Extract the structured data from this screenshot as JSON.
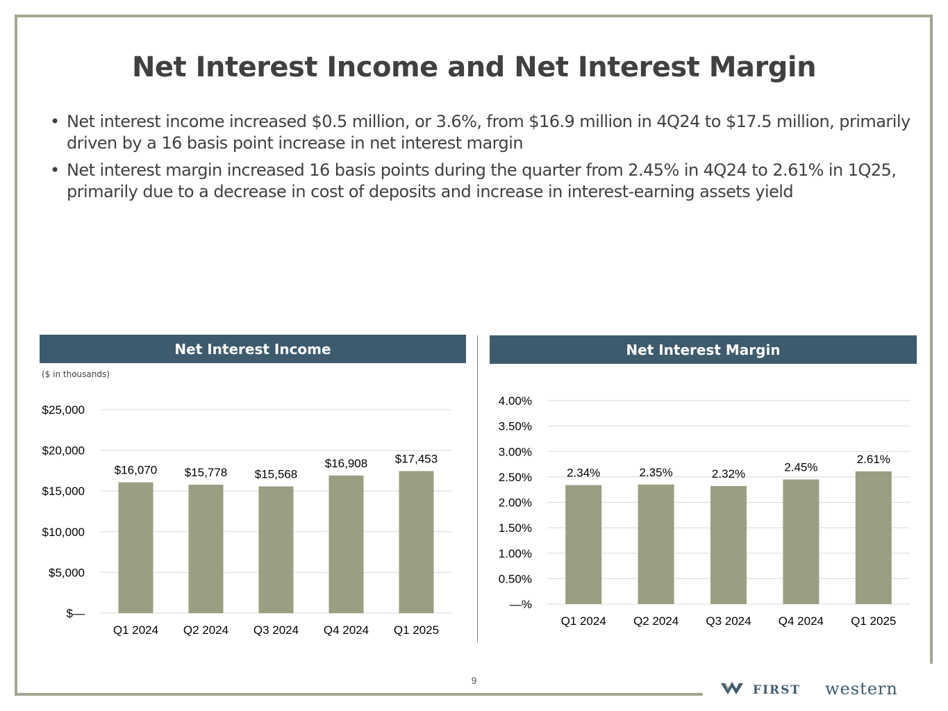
{
  "slide": {
    "title": "Net Interest Income and Net Interest Margin",
    "bullets": [
      "Net interest income increased $0.5 million, or 3.6%, from $16.9 million in 4Q24 to $17.5 million, primarily driven by  a 16 basis point increase in net interest margin",
      "Net interest margin increased 16 basis points during the quarter from 2.45% in 4Q24 to 2.61% in 1Q25, primarily due to a decrease in cost of deposits and increase in interest-earning assets yield"
    ],
    "page_number": "9"
  },
  "panels": {
    "nii_header": "Net Interest Income",
    "nim_header": "Net Interest Margin",
    "nii_note": "($ in thousands)"
  },
  "logo": {
    "word1": "FIRST",
    "word2": "western",
    "icon": "stylized-w-icon",
    "color": "#3e5b6e"
  },
  "chart_data": [
    {
      "type": "bar",
      "title": "Net Interest Income",
      "categories": [
        "Q1 2024",
        "Q2 2024",
        "Q3 2024",
        "Q4 2024",
        "Q1 2025"
      ],
      "values": [
        16070,
        15778,
        15568,
        16908,
        17453
      ],
      "data_labels": [
        "$16,070",
        "$15,778",
        "$15,568",
        "$16,908",
        "$17,453"
      ],
      "yticks": [
        0,
        5000,
        10000,
        15000,
        20000,
        25000
      ],
      "ytick_labels": [
        "$—",
        "$5,000",
        "$10,000",
        "$15,000",
        "$20,000",
        "$25,000"
      ],
      "ylim": [
        0,
        25000
      ],
      "grid": true,
      "bar_color": "#9a9e82"
    },
    {
      "type": "bar",
      "title": "Net Interest Margin",
      "categories": [
        "Q1 2024",
        "Q2 2024",
        "Q3 2024",
        "Q4 2024",
        "Q1 2025"
      ],
      "values": [
        2.34,
        2.35,
        2.32,
        2.45,
        2.61
      ],
      "data_labels": [
        "2.34%",
        "2.35%",
        "2.32%",
        "2.45%",
        "2.61%"
      ],
      "yticks": [
        0,
        0.5,
        1.0,
        1.5,
        2.0,
        2.5,
        3.0,
        3.5,
        4.0
      ],
      "ytick_labels": [
        "—%",
        "0.50%",
        "1.00%",
        "1.50%",
        "2.00%",
        "2.50%",
        "3.00%",
        "3.50%",
        "4.00%"
      ],
      "ylim": [
        0,
        4.0
      ],
      "grid": true,
      "bar_color": "#9a9e82"
    }
  ]
}
